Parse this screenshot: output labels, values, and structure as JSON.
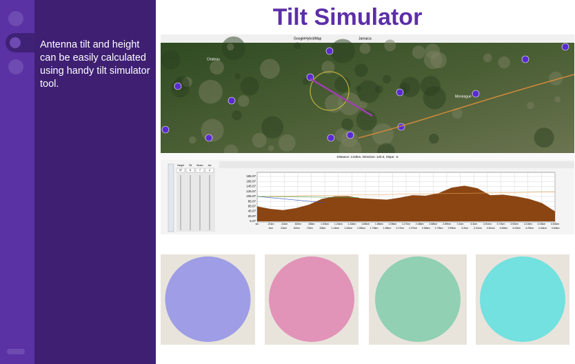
{
  "slide": {
    "title": "Tilt Simulator",
    "body": "Antenna tilt and height can be easily calculated using handy tilt simulator tool."
  },
  "screenshot": {
    "toolbar": {
      "map_layer": "GoogleHybridMap",
      "region": "Jamaica"
    },
    "map_labels": [
      "Chateau",
      "Moneague"
    ],
    "status": "Distance: 4.64km, Direction: 120.0, Slope: .5",
    "controls": {
      "labels": [
        "Height",
        "Tilt",
        "Beam",
        "Azi"
      ],
      "values": [
        "37",
        "5",
        "7",
        "2"
      ]
    },
    "profile": {
      "ylim": [
        5.07,
        185.07
      ],
      "yticks": [
        {
          "value": 185.07,
          "label": "185.07"
        },
        {
          "value": 165.07,
          "label": "165.07"
        },
        {
          "value": 145.07,
          "label": "145.07"
        },
        {
          "value": 125.07,
          "label": "125.07"
        },
        {
          "value": 105.07,
          "label": "105.07"
        },
        {
          "value": 85.07,
          "label": "85.07"
        },
        {
          "value": 65.07,
          "label": "65.07"
        },
        {
          "value": 45.07,
          "label": "45.07"
        },
        {
          "value": 25.07,
          "label": "25.07"
        },
        {
          "value": 5.07,
          "label": "5.07"
        }
      ],
      "x_labels_top": [
        "km",
        ".21km",
        ".41km",
        ".62km",
        ".83km",
        "1.03km",
        "1.24km",
        "1.44km",
        "1.65km",
        "1.86km",
        "2.06km",
        "2.27km",
        "2.48km",
        "2.68km",
        "2.89km",
        "3.1km",
        "3.3km",
        "3.51km",
        "3.72km",
        "3.92km",
        "4.13km",
        "4.33km",
        "4.54km"
      ],
      "x_labels_bottom": [
        ".1km",
        ".31km",
        ".52km",
        ".72km",
        ".93km",
        "1.14km",
        "1.34km",
        "1.55km",
        "1.76km",
        "1.96km",
        "2.17km",
        "2.37km",
        "2.58km",
        "2.79km",
        "2.99km",
        "3.2km",
        "3.41km",
        "3.61km",
        "3.82km",
        "4.02km",
        "4.23km",
        "4.44km",
        "4.64km"
      ],
      "elevation": [
        65,
        55,
        50,
        58,
        72,
        95,
        105,
        106,
        98,
        95,
        92,
        100,
        110,
        108,
        118,
        140,
        148,
        138,
        110,
        112,
        105,
        95,
        78,
        45
      ]
    }
  }
}
